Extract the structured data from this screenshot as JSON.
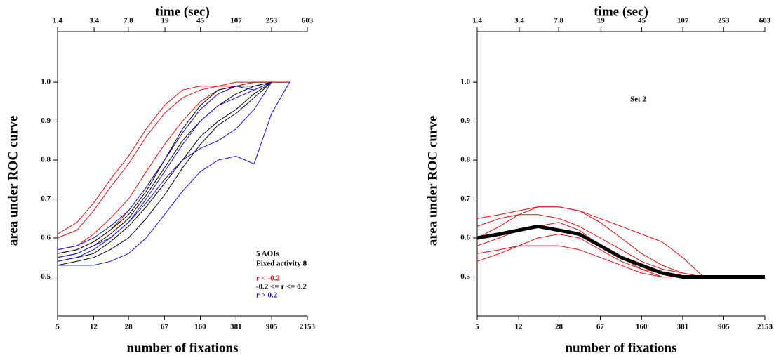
{
  "chart_data": [
    {
      "type": "line",
      "title": "time (sec)",
      "xlabel": "number of fixations",
      "ylabel": "area under ROC curve",
      "xscale": "log",
      "xlim": [
        5,
        2153
      ],
      "xticks": [
        5,
        12,
        28,
        67,
        160,
        381,
        905,
        2153
      ],
      "x2lim": [
        1.4,
        603
      ],
      "x2ticks": [
        1.4,
        3.4,
        7.8,
        19,
        45,
        107,
        253,
        603
      ],
      "ylim": [
        0.4,
        1.13
      ],
      "yticks": [
        0.5,
        0.6,
        0.7,
        0.8,
        0.9,
        {
          "value": 1.0,
          "label": "1.0"
        }
      ],
      "annotations": [
        "5 AOIs",
        "Fixed activity 8"
      ],
      "legend": "lower right",
      "x": [
        5,
        8,
        12,
        18,
        28,
        43,
        67,
        104,
        160,
        247,
        381,
        590,
        905,
        1400
      ],
      "series": [
        {
          "name": "r < -0.2",
          "color": "#e01010",
          "lines": [
            [
              0.61,
              0.64,
              0.69,
              0.75,
              0.81,
              0.88,
              0.94,
              0.98,
              0.99,
              0.99,
              0.99,
              1.0,
              1.0,
              1.0
            ],
            [
              0.6,
              0.62,
              0.67,
              0.73,
              0.79,
              0.86,
              0.92,
              0.96,
              0.98,
              0.99,
              1.0,
              1.0,
              1.0,
              1.0
            ],
            [
              0.57,
              0.58,
              0.61,
              0.65,
              0.7,
              0.77,
              0.84,
              0.9,
              0.95,
              0.98,
              0.99,
              1.0,
              1.0,
              1.0
            ],
            [
              0.56,
              0.57,
              0.59,
              0.62,
              0.67,
              0.73,
              0.8,
              0.87,
              0.93,
              0.97,
              0.99,
              1.0,
              1.0,
              null
            ]
          ]
        },
        {
          "name": "-0.2 <= r <= 0.2",
          "color": "#000000",
          "lines": [
            [
              0.55,
              0.56,
              0.58,
              0.61,
              0.65,
              0.71,
              0.78,
              0.85,
              0.9,
              0.94,
              0.97,
              0.99,
              1.0,
              null
            ],
            [
              0.54,
              0.55,
              0.56,
              0.59,
              0.63,
              0.68,
              0.74,
              0.8,
              0.86,
              0.9,
              0.93,
              0.97,
              1.0,
              null
            ],
            [
              0.56,
              0.57,
              0.59,
              0.62,
              0.66,
              0.72,
              0.8,
              0.88,
              0.94,
              0.98,
              0.99,
              0.99,
              1.0,
              null
            ],
            [
              0.53,
              0.54,
              0.55,
              0.57,
              0.6,
              0.65,
              0.71,
              0.78,
              0.84,
              0.89,
              0.92,
              0.96,
              1.0,
              null
            ]
          ]
        },
        {
          "name": "r > 0.2",
          "color": "#1010e0",
          "lines": [
            [
              0.53,
              0.53,
              0.53,
              0.54,
              0.56,
              0.6,
              0.66,
              0.72,
              0.77,
              0.8,
              0.81,
              0.79,
              0.92,
              1.0
            ],
            [
              0.57,
              0.58,
              0.6,
              0.63,
              0.67,
              0.73,
              0.8,
              0.87,
              0.93,
              0.97,
              0.99,
              0.98,
              1.0,
              null
            ],
            [
              0.55,
              0.56,
              0.58,
              0.6,
              0.64,
              0.69,
              0.75,
              0.8,
              0.83,
              0.85,
              0.88,
              0.93,
              1.0,
              null
            ],
            [
              0.54,
              0.55,
              0.57,
              0.6,
              0.64,
              0.7,
              0.77,
              0.84,
              0.9,
              0.94,
              0.96,
              0.98,
              1.0,
              null
            ]
          ]
        }
      ]
    },
    {
      "type": "line",
      "title": "time (sec)",
      "xlabel": "number of fixations",
      "ylabel": "area under ROC curve",
      "xscale": "log",
      "xlim": [
        5,
        2153
      ],
      "xticks": [
        5,
        12,
        28,
        67,
        160,
        381,
        905,
        2153
      ],
      "x2lim": [
        1.4,
        603
      ],
      "x2ticks": [
        1.4,
        3.4,
        7.8,
        19,
        45,
        107,
        253,
        603
      ],
      "ylim": [
        0.4,
        1.13
      ],
      "yticks": [
        0.5,
        0.6,
        0.7,
        0.8,
        0.9,
        {
          "value": 1.0,
          "label": "1.0"
        }
      ],
      "annotations": [
        "Set 2"
      ],
      "x": [
        5,
        8,
        12,
        18,
        28,
        43,
        67,
        104,
        160,
        247,
        381,
        590,
        905,
        1400,
        2153
      ],
      "series": [
        {
          "color": "#e01010",
          "lines": [
            [
              0.65,
              0.66,
              0.67,
              0.68,
              0.68,
              0.67,
              0.64,
              0.6,
              0.56,
              0.53,
              0.51,
              0.5,
              0.5,
              0.5,
              0.5
            ],
            [
              0.6,
              0.63,
              0.66,
              0.68,
              0.68,
              0.67,
              0.65,
              0.63,
              0.61,
              0.59,
              0.55,
              0.5,
              0.5,
              0.5,
              0.5
            ],
            [
              0.54,
              0.56,
              0.58,
              0.6,
              0.61,
              0.6,
              0.57,
              0.54,
              0.52,
              0.51,
              0.5,
              0.5,
              0.5,
              0.5,
              0.5
            ],
            [
              0.58,
              0.6,
              0.62,
              0.63,
              0.64,
              0.62,
              0.58,
              0.55,
              0.52,
              0.5,
              0.5,
              0.5,
              0.5,
              0.5,
              0.5
            ],
            [
              0.56,
              0.57,
              0.58,
              0.58,
              0.58,
              0.57,
              0.55,
              0.53,
              0.51,
              0.5,
              0.5,
              0.5,
              0.5,
              0.5,
              0.5
            ],
            [
              0.63,
              0.65,
              0.66,
              0.66,
              0.65,
              0.63,
              0.6,
              0.57,
              0.54,
              0.52,
              0.51,
              0.5,
              0.5,
              0.5,
              0.5
            ]
          ]
        },
        {
          "color": "#000000",
          "linewidth": 5,
          "lines": [
            [
              0.6,
              0.61,
              0.62,
              0.63,
              0.62,
              0.61,
              0.58,
              0.55,
              0.53,
              0.51,
              0.5,
              0.5,
              0.5,
              0.5,
              0.5
            ]
          ]
        }
      ]
    }
  ]
}
